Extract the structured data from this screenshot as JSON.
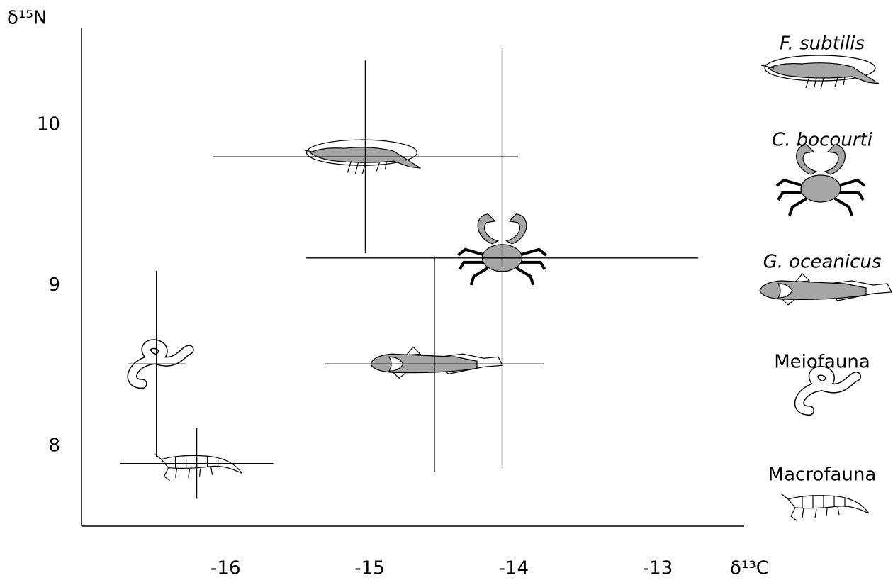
{
  "chart_data": {
    "type": "scatter",
    "x_label": "δ¹³C",
    "y_label": "δ¹⁵N",
    "xlim": [
      -17.0,
      -12.4
    ],
    "ylim": [
      7.5,
      10.6
    ],
    "xticks": [
      -16,
      -15,
      -14,
      -13
    ],
    "yticks": [
      8,
      9,
      10
    ],
    "series": [
      {
        "name": "F. subtilis",
        "x": [
          -15.03
        ],
        "values": [
          9.8
        ],
        "xerr": [
          1.06
        ],
        "yerr": [
          0.6
        ]
      },
      {
        "name": "C. bocourti",
        "x": [
          -14.08
        ],
        "values": [
          9.17
        ],
        "xerr": [
          1.36
        ],
        "yerr": [
          1.31
        ]
      },
      {
        "name": "G. oceanicus",
        "x": [
          -14.55
        ],
        "values": [
          8.51
        ],
        "xerr": [
          0.76
        ],
        "yerr": [
          0.67
        ]
      },
      {
        "name": "Meiofauna",
        "x": [
          -16.48
        ],
        "values": [
          8.51
        ],
        "xerr": [
          0.2
        ],
        "yerr": [
          0.58
        ]
      },
      {
        "name": "Macrofauna",
        "x": [
          -16.2
        ],
        "values": [
          7.89
        ],
        "xerr": [
          0.53
        ],
        "yerr": [
          0.22
        ]
      }
    ]
  }
}
